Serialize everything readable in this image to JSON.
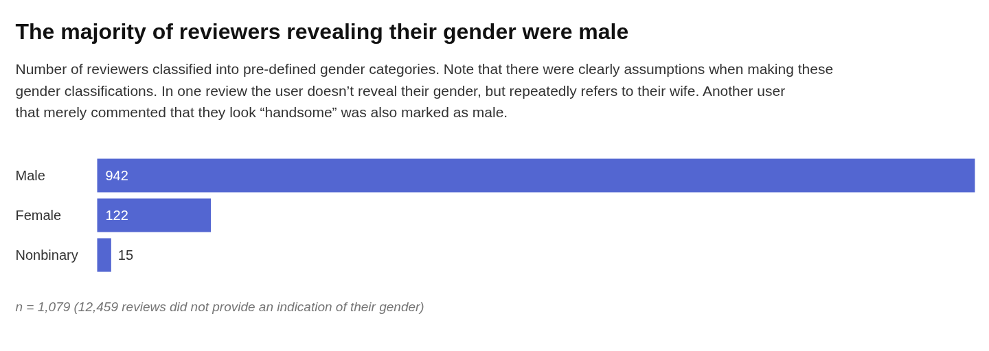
{
  "chart_data": {
    "type": "bar",
    "orientation": "horizontal",
    "title": "The majority of reviewers revealing their gender were male",
    "subtitle": "Number of reviewers classified into pre-defined gender categories. Note that there were clearly assumptions when making these gender classifications. In one review the user doesn’t reveal their gender, but repeatedly refers to their wife. Another user that merely commented that they look “handsome” was also marked as male.",
    "categories": [
      "Male",
      "Female",
      "Nonbinary"
    ],
    "values": [
      942,
      122,
      15
    ],
    "color": "#5366d1",
    "xlim": [
      0,
      942
    ],
    "data_labels": true,
    "annotations": [
      "n = 1,079 (12,459 reviews did not provide an indication of their gender)"
    ]
  }
}
